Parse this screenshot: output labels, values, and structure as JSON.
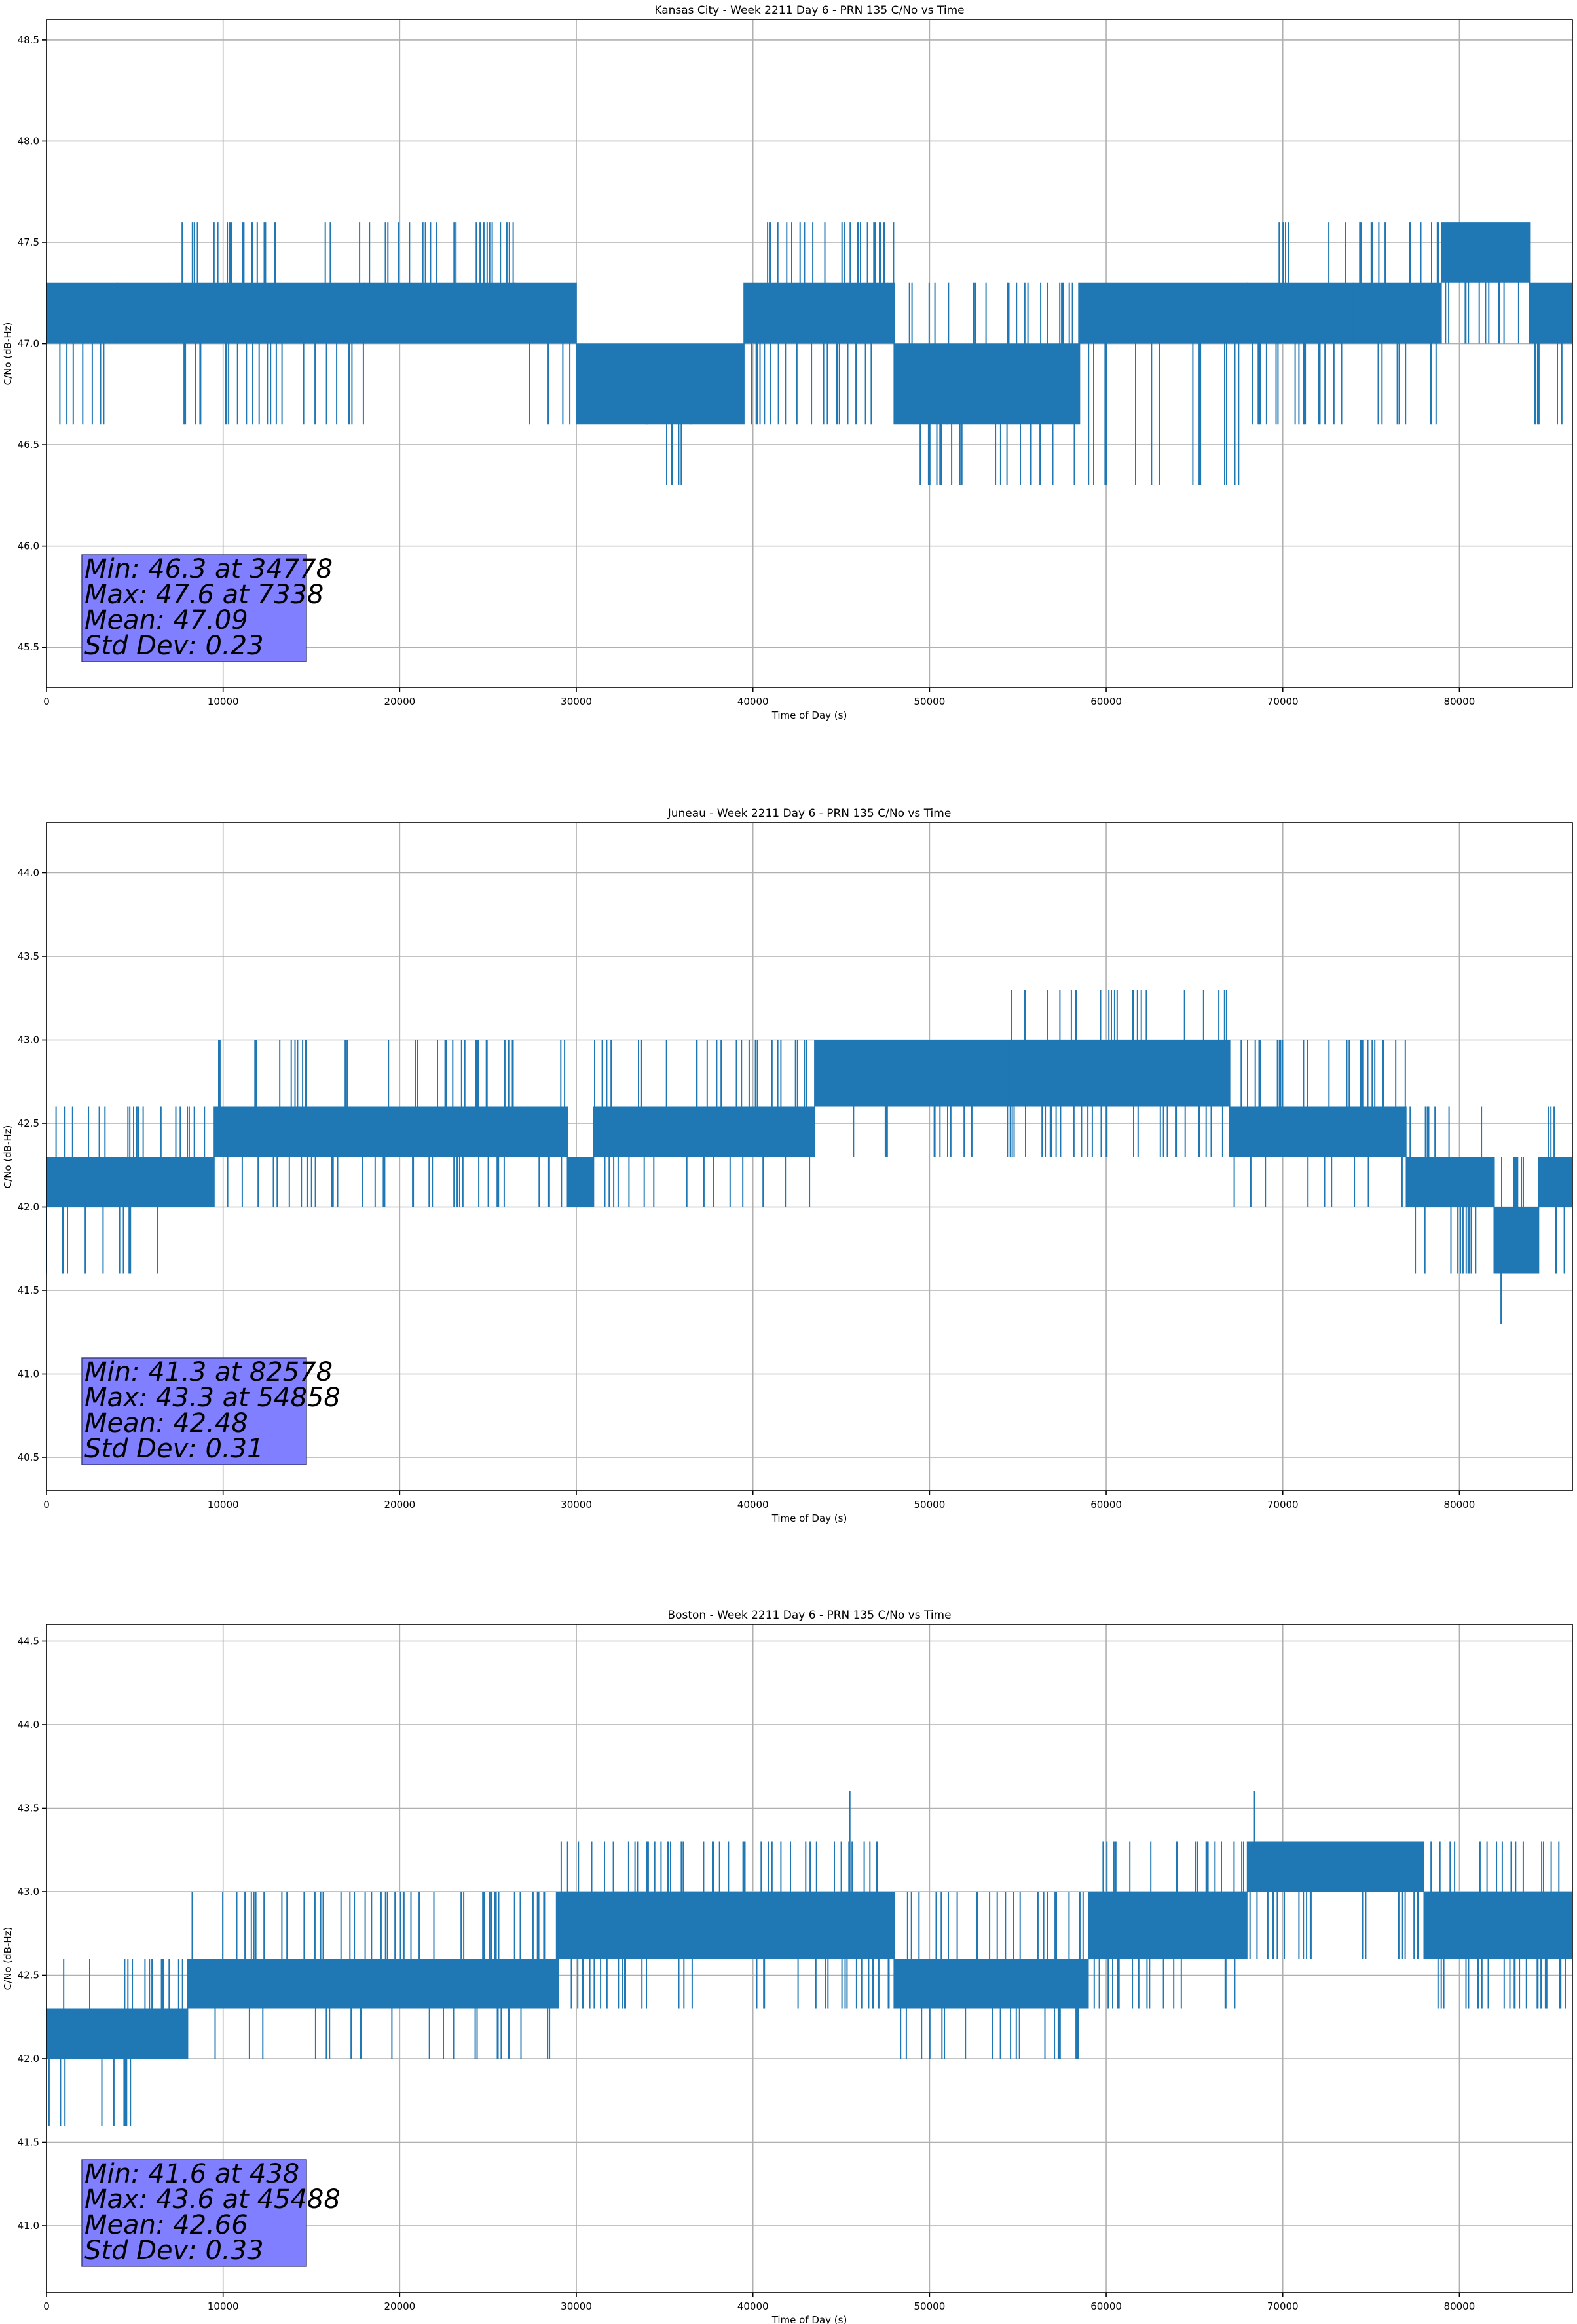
{
  "chart_data": [
    {
      "type": "line",
      "title": "Kansas City - Week 2211 Day 6 - PRN 135 C/No vs Time",
      "xlabel": "Time of Day (s)",
      "ylabel": "C/No (dB-Hz)",
      "xlim": [
        0,
        86400
      ],
      "ylim": [
        45.3,
        48.6
      ],
      "xticks": [
        0,
        10000,
        20000,
        30000,
        40000,
        50000,
        60000,
        70000,
        80000
      ],
      "yticks": [
        45.5,
        46.0,
        46.5,
        47.0,
        47.5,
        48.0,
        48.5
      ],
      "ytick_decimals": 1,
      "grid": true,
      "color": "#1f77b4",
      "quantization": 0.3,
      "segments": [
        {
          "x0": 0,
          "x1": 4000,
          "low": 47.0,
          "high": 47.3,
          "up": 47.3,
          "down": 46.6
        },
        {
          "x0": 4000,
          "x1": 7000,
          "low": 47.0,
          "high": 47.3,
          "up": 47.3,
          "down": 47.0
        },
        {
          "x0": 7000,
          "x1": 18000,
          "low": 47.0,
          "high": 47.3,
          "up": 47.6,
          "down": 46.6
        },
        {
          "x0": 18000,
          "x1": 26500,
          "low": 47.0,
          "high": 47.3,
          "up": 47.6,
          "down": 47.0
        },
        {
          "x0": 26500,
          "x1": 30000,
          "low": 47.0,
          "high": 47.3,
          "up": 47.3,
          "down": 46.6
        },
        {
          "x0": 30000,
          "x1": 34000,
          "low": 46.6,
          "high": 47.0,
          "up": 47.0,
          "down": 46.6
        },
        {
          "x0": 34000,
          "x1": 36500,
          "low": 46.6,
          "high": 47.0,
          "up": 47.0,
          "down": 46.3
        },
        {
          "x0": 36500,
          "x1": 39500,
          "low": 46.6,
          "high": 47.0,
          "up": 47.0,
          "down": 46.6
        },
        {
          "x0": 39500,
          "x1": 48000,
          "low": 47.0,
          "high": 47.3,
          "up": 47.6,
          "down": 46.6
        },
        {
          "x0": 48000,
          "x1": 51000,
          "low": 46.6,
          "high": 47.0,
          "up": 47.3,
          "down": 46.3
        },
        {
          "x0": 51000,
          "x1": 58500,
          "low": 46.6,
          "high": 47.0,
          "up": 47.3,
          "down": 46.3
        },
        {
          "x0": 58500,
          "x1": 68000,
          "low": 47.0,
          "high": 47.3,
          "up": 47.3,
          "down": 46.3
        },
        {
          "x0": 68000,
          "x1": 74000,
          "low": 47.0,
          "high": 47.3,
          "up": 47.6,
          "down": 46.6
        },
        {
          "x0": 74000,
          "x1": 79000,
          "low": 47.0,
          "high": 47.3,
          "up": 47.6,
          "down": 46.6
        },
        {
          "x0": 79000,
          "x1": 84000,
          "low": 47.3,
          "high": 47.6,
          "up": 47.6,
          "down": 47.0
        },
        {
          "x0": 84000,
          "x1": 86400,
          "low": 47.0,
          "high": 47.3,
          "up": 47.3,
          "down": 46.6
        }
      ],
      "stats": {
        "min": "Min: 46.3 at 34778",
        "max": "Max: 47.6 at 7338",
        "mean": "Mean: 47.09",
        "std": "Std Dev: 0.23"
      }
    },
    {
      "type": "line",
      "title": "Juneau - Week 2211 Day 6 - PRN 135 C/No vs Time",
      "xlabel": "Time of Day (s)",
      "ylabel": "C/No (dB-Hz)",
      "xlim": [
        0,
        86400
      ],
      "ylim": [
        40.3,
        44.3
      ],
      "xticks": [
        0,
        10000,
        20000,
        30000,
        40000,
        50000,
        60000,
        70000,
        80000
      ],
      "yticks": [
        40.5,
        41.0,
        41.5,
        42.0,
        42.5,
        43.0,
        43.5,
        44.0
      ],
      "ytick_decimals": 1,
      "grid": true,
      "color": "#1f77b4",
      "quantization": 0.3,
      "segments": [
        {
          "x0": 0,
          "x1": 7000,
          "low": 42.0,
          "high": 42.3,
          "up": 42.6,
          "down": 41.6
        },
        {
          "x0": 7000,
          "x1": 9500,
          "low": 42.0,
          "high": 42.3,
          "up": 42.6,
          "down": 42.0
        },
        {
          "x0": 9500,
          "x1": 29500,
          "low": 42.3,
          "high": 42.6,
          "up": 43.0,
          "down": 42.0
        },
        {
          "x0": 29500,
          "x1": 31000,
          "low": 42.0,
          "high": 42.3,
          "up": 42.6,
          "down": 42.0
        },
        {
          "x0": 31000,
          "x1": 43500,
          "low": 42.3,
          "high": 42.6,
          "up": 43.0,
          "down": 42.0
        },
        {
          "x0": 43500,
          "x1": 54500,
          "low": 42.6,
          "high": 43.0,
          "up": 43.0,
          "down": 42.3
        },
        {
          "x0": 54500,
          "x1": 67000,
          "low": 42.6,
          "high": 43.0,
          "up": 43.3,
          "down": 42.3
        },
        {
          "x0": 67000,
          "x1": 77000,
          "low": 42.3,
          "high": 42.6,
          "up": 43.0,
          "down": 42.0
        },
        {
          "x0": 77000,
          "x1": 82000,
          "low": 42.0,
          "high": 42.3,
          "up": 42.6,
          "down": 41.6
        },
        {
          "x0": 82000,
          "x1": 84500,
          "low": 41.6,
          "high": 42.0,
          "up": 42.3,
          "down": 41.3
        },
        {
          "x0": 84500,
          "x1": 86400,
          "low": 42.0,
          "high": 42.3,
          "up": 42.6,
          "down": 41.6
        }
      ],
      "stats": {
        "min": "Min: 41.3 at 82578",
        "max": "Max: 43.3 at 54858",
        "mean": "Mean: 42.48",
        "std": "Std Dev: 0.31"
      }
    },
    {
      "type": "line",
      "title": "Boston - Week 2211 Day 6 - PRN 135 C/No vs Time",
      "xlabel": "Time of Day (s)",
      "ylabel": "C/No (dB-Hz)",
      "xlim": [
        0,
        86400
      ],
      "ylim": [
        40.6,
        44.6
      ],
      "xticks": [
        0,
        10000,
        20000,
        30000,
        40000,
        50000,
        60000,
        70000,
        80000
      ],
      "yticks": [
        41.0,
        41.5,
        42.0,
        42.5,
        43.0,
        43.5,
        44.0,
        44.5
      ],
      "ytick_decimals": 1,
      "grid": true,
      "color": "#1f77b4",
      "quantization": 0.3,
      "segments": [
        {
          "x0": 0,
          "x1": 5000,
          "low": 42.0,
          "high": 42.3,
          "up": 42.6,
          "down": 41.6
        },
        {
          "x0": 5000,
          "x1": 8000,
          "low": 42.0,
          "high": 42.3,
          "up": 42.6,
          "down": 42.0
        },
        {
          "x0": 8000,
          "x1": 29000,
          "low": 42.3,
          "high": 42.6,
          "up": 43.0,
          "down": 42.0
        },
        {
          "x0": 29000,
          "x1": 40000,
          "low": 42.6,
          "high": 43.0,
          "up": 43.3,
          "down": 42.3
        },
        {
          "x0": 40000,
          "x1": 48000,
          "low": 42.6,
          "high": 43.0,
          "up": 43.3,
          "down": 42.3
        },
        {
          "x0": 48000,
          "x1": 59000,
          "low": 42.3,
          "high": 42.6,
          "up": 43.0,
          "down": 42.0
        },
        {
          "x0": 59000,
          "x1": 68000,
          "low": 42.6,
          "high": 43.0,
          "up": 43.3,
          "down": 42.3
        },
        {
          "x0": 68000,
          "x1": 78000,
          "low": 43.0,
          "high": 43.3,
          "up": 43.3,
          "down": 42.6
        },
        {
          "x0": 78000,
          "x1": 86400,
          "low": 42.6,
          "high": 43.0,
          "up": 43.3,
          "down": 42.3
        }
      ],
      "spikes": [
        [
          45488,
          43.6
        ],
        [
          68400,
          43.6
        ]
      ],
      "stats": {
        "min": "Min: 41.6 at 438",
        "max": "Max: 43.6 at 45488",
        "mean": "Mean: 42.66",
        "std": "Std Dev: 0.33"
      }
    }
  ]
}
